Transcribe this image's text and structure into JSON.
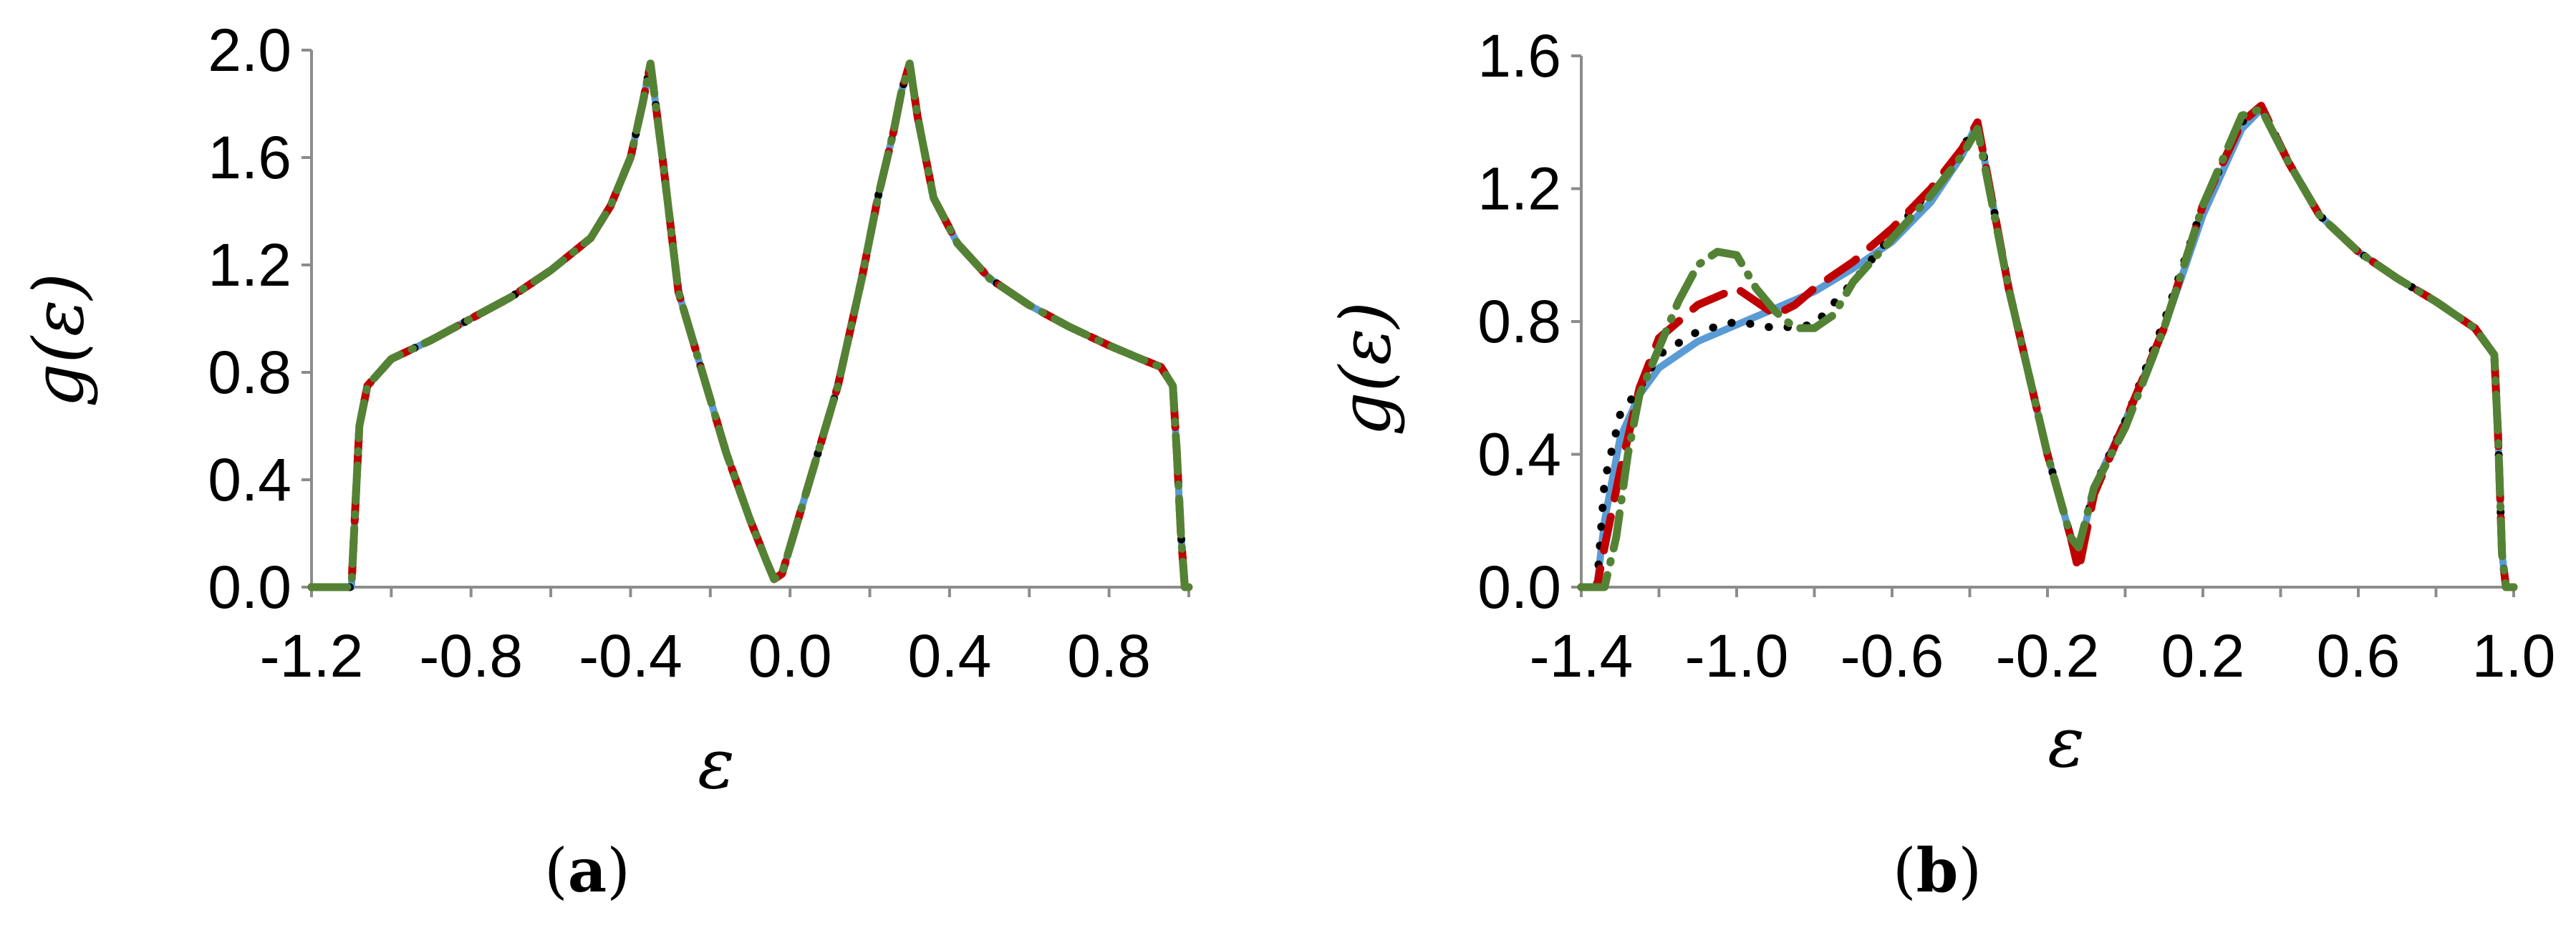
{
  "chart_data": [
    {
      "panel": "(a)",
      "panel_letter": "a",
      "type": "line",
      "xlabel": "ε",
      "ylabel": "g(ε)",
      "xlim": [
        -1.2,
        1.0
      ],
      "ylim": [
        0.0,
        2.0
      ],
      "xticks": [
        "-1.2",
        "-0.8",
        "-0.4",
        "0.0",
        "0.4",
        "0.8"
      ],
      "xtick_values": [
        -1.2,
        -0.8,
        -0.4,
        0.0,
        0.4,
        0.8
      ],
      "yticks": [
        "0.0",
        "0.4",
        "0.8",
        "1.2",
        "1.6",
        "2.0"
      ],
      "ytick_values": [
        0.0,
        0.4,
        0.8,
        1.2,
        1.6,
        2.0
      ],
      "series": [
        {
          "style": "solid",
          "color": "#5b9bd5",
          "x": [
            -1.2,
            -1.12,
            -1.1,
            -1.09,
            -1.08,
            -1.06,
            -1.0,
            -0.9,
            -0.8,
            -0.7,
            -0.6,
            -0.5,
            -0.45,
            -0.4,
            -0.37,
            -0.35,
            -0.32,
            -0.28,
            -0.22,
            -0.16,
            -0.1,
            -0.06,
            -0.04,
            -0.02,
            0.02,
            0.06,
            0.12,
            0.18,
            0.22,
            0.26,
            0.28,
            0.3,
            0.32,
            0.36,
            0.42,
            0.5,
            0.6,
            0.7,
            0.8,
            0.88,
            0.93,
            0.96,
            0.97,
            0.98,
            0.99,
            1.0
          ],
          "y": [
            0.0,
            0.0,
            0.0,
            0.3,
            0.6,
            0.75,
            0.85,
            0.92,
            1.0,
            1.08,
            1.18,
            1.3,
            1.42,
            1.6,
            1.8,
            1.95,
            1.6,
            1.1,
            0.8,
            0.5,
            0.25,
            0.1,
            0.03,
            0.05,
            0.25,
            0.45,
            0.75,
            1.15,
            1.45,
            1.7,
            1.85,
            1.95,
            1.75,
            1.45,
            1.28,
            1.15,
            1.05,
            0.97,
            0.9,
            0.85,
            0.82,
            0.75,
            0.5,
            0.2,
            0.0,
            0.0
          ]
        },
        {
          "style": "dotted",
          "color": "#000000",
          "x": [
            -1.2,
            -1.12,
            -1.1,
            -1.09,
            -1.08,
            -1.06,
            -1.0,
            -0.9,
            -0.8,
            -0.7,
            -0.6,
            -0.5,
            -0.45,
            -0.4,
            -0.37,
            -0.35,
            -0.32,
            -0.28,
            -0.22,
            -0.16,
            -0.1,
            -0.06,
            -0.04,
            -0.02,
            0.02,
            0.06,
            0.12,
            0.18,
            0.22,
            0.26,
            0.28,
            0.3,
            0.32,
            0.36,
            0.42,
            0.5,
            0.6,
            0.7,
            0.8,
            0.88,
            0.93,
            0.96,
            0.97,
            0.98,
            0.99,
            1.0
          ],
          "y": [
            0.0,
            0.0,
            0.0,
            0.3,
            0.6,
            0.75,
            0.85,
            0.92,
            1.0,
            1.08,
            1.18,
            1.3,
            1.42,
            1.6,
            1.8,
            1.95,
            1.6,
            1.1,
            0.8,
            0.5,
            0.25,
            0.1,
            0.03,
            0.05,
            0.25,
            0.45,
            0.75,
            1.15,
            1.45,
            1.7,
            1.85,
            1.95,
            1.75,
            1.45,
            1.28,
            1.15,
            1.05,
            0.97,
            0.9,
            0.85,
            0.82,
            0.75,
            0.5,
            0.2,
            0.0,
            0.0
          ]
        },
        {
          "style": "dashed",
          "color": "#c00000",
          "x": [
            -1.2,
            -1.12,
            -1.1,
            -1.09,
            -1.08,
            -1.06,
            -1.0,
            -0.9,
            -0.8,
            -0.7,
            -0.6,
            -0.5,
            -0.45,
            -0.4,
            -0.37,
            -0.35,
            -0.32,
            -0.28,
            -0.22,
            -0.16,
            -0.1,
            -0.06,
            -0.04,
            -0.02,
            0.02,
            0.06,
            0.12,
            0.18,
            0.22,
            0.26,
            0.28,
            0.3,
            0.32,
            0.36,
            0.42,
            0.5,
            0.6,
            0.7,
            0.8,
            0.88,
            0.93,
            0.96,
            0.97,
            0.98,
            0.99,
            1.0
          ],
          "y": [
            0.0,
            0.0,
            0.0,
            0.3,
            0.6,
            0.75,
            0.85,
            0.92,
            1.0,
            1.08,
            1.18,
            1.3,
            1.42,
            1.6,
            1.8,
            1.95,
            1.6,
            1.1,
            0.8,
            0.5,
            0.25,
            0.1,
            0.03,
            0.05,
            0.25,
            0.45,
            0.75,
            1.15,
            1.45,
            1.7,
            1.85,
            1.95,
            1.75,
            1.45,
            1.28,
            1.15,
            1.05,
            0.97,
            0.9,
            0.85,
            0.82,
            0.75,
            0.5,
            0.2,
            0.0,
            0.0
          ]
        },
        {
          "style": "dash-dot",
          "color": "#548235",
          "x": [
            -1.2,
            -1.12,
            -1.1,
            -1.09,
            -1.08,
            -1.06,
            -1.0,
            -0.9,
            -0.8,
            -0.7,
            -0.6,
            -0.5,
            -0.45,
            -0.4,
            -0.37,
            -0.35,
            -0.32,
            -0.28,
            -0.22,
            -0.16,
            -0.1,
            -0.06,
            -0.04,
            -0.02,
            0.02,
            0.06,
            0.12,
            0.18,
            0.22,
            0.26,
            0.28,
            0.3,
            0.32,
            0.36,
            0.42,
            0.5,
            0.6,
            0.7,
            0.8,
            0.88,
            0.93,
            0.96,
            0.97,
            0.98,
            0.99,
            1.0
          ],
          "y": [
            0.0,
            0.0,
            0.0,
            0.3,
            0.6,
            0.75,
            0.85,
            0.92,
            1.0,
            1.08,
            1.18,
            1.3,
            1.42,
            1.6,
            1.8,
            1.95,
            1.6,
            1.1,
            0.8,
            0.5,
            0.25,
            0.1,
            0.03,
            0.05,
            0.25,
            0.45,
            0.75,
            1.15,
            1.45,
            1.7,
            1.85,
            1.95,
            1.75,
            1.45,
            1.28,
            1.15,
            1.05,
            0.97,
            0.9,
            0.85,
            0.82,
            0.75,
            0.5,
            0.2,
            0.0,
            0.0
          ]
        }
      ]
    },
    {
      "panel": "(b)",
      "panel_letter": "b",
      "type": "line",
      "xlabel": "ε",
      "ylabel": "g(ε)",
      "xlim": [
        -1.4,
        1.0
      ],
      "ylim": [
        0.0,
        1.6
      ],
      "xticks": [
        "-1.4",
        "-1.0",
        "-0.6",
        "-0.2",
        "0.2",
        "0.6",
        "1.0"
      ],
      "xtick_values": [
        -1.4,
        -1.0,
        -0.6,
        -0.2,
        0.2,
        0.6,
        1.0
      ],
      "yticks": [
        "0.0",
        "0.4",
        "0.8",
        "1.2",
        "1.6"
      ],
      "ytick_values": [
        0.0,
        0.4,
        0.8,
        1.2,
        1.6
      ],
      "series": [
        {
          "style": "solid",
          "color": "#5b9bd5",
          "x": [
            -1.4,
            -1.36,
            -1.34,
            -1.3,
            -1.25,
            -1.2,
            -1.1,
            -1.0,
            -0.9,
            -0.8,
            -0.7,
            -0.6,
            -0.5,
            -0.42,
            -0.38,
            -0.3,
            -0.2,
            -0.14,
            -0.12,
            -0.08,
            0.0,
            0.1,
            0.2,
            0.3,
            0.35,
            0.42,
            0.5,
            0.6,
            0.7,
            0.8,
            0.9,
            0.95,
            0.96,
            0.97,
            0.98,
            1.0
          ],
          "y": [
            0.0,
            0.0,
            0.2,
            0.45,
            0.58,
            0.66,
            0.74,
            0.79,
            0.84,
            0.89,
            0.96,
            1.04,
            1.16,
            1.3,
            1.4,
            0.9,
            0.4,
            0.15,
            0.1,
            0.3,
            0.5,
            0.78,
            1.12,
            1.38,
            1.44,
            1.28,
            1.12,
            1.01,
            0.93,
            0.86,
            0.78,
            0.7,
            0.45,
            0.1,
            0.0,
            0.0
          ]
        },
        {
          "style": "dotted",
          "color": "#000000",
          "x": [
            -1.4,
            -1.36,
            -1.34,
            -1.3,
            -1.25,
            -1.2,
            -1.1,
            -1.0,
            -0.9,
            -0.8,
            -0.7,
            -0.6,
            -0.5,
            -0.42,
            -0.38,
            -0.3,
            -0.2,
            -0.14,
            -0.12,
            -0.08,
            0.0,
            0.1,
            0.2,
            0.3,
            0.35,
            0.42,
            0.5,
            0.6,
            0.7,
            0.8,
            0.9,
            0.95,
            0.96,
            0.97,
            0.98,
            1.0
          ],
          "y": [
            0.0,
            0.0,
            0.32,
            0.52,
            0.6,
            0.7,
            0.77,
            0.8,
            0.78,
            0.79,
            0.92,
            1.06,
            1.2,
            1.32,
            1.4,
            0.9,
            0.4,
            0.15,
            0.1,
            0.3,
            0.5,
            0.8,
            1.15,
            1.4,
            1.45,
            1.28,
            1.12,
            1.01,
            0.93,
            0.86,
            0.78,
            0.7,
            0.45,
            0.1,
            0.0,
            0.0
          ]
        },
        {
          "style": "dashed",
          "color": "#c00000",
          "x": [
            -1.4,
            -1.36,
            -1.34,
            -1.3,
            -1.25,
            -1.2,
            -1.1,
            -1.0,
            -0.9,
            -0.85,
            -0.8,
            -0.7,
            -0.6,
            -0.5,
            -0.42,
            -0.38,
            -0.3,
            -0.2,
            -0.14,
            -0.12,
            -0.08,
            0.0,
            0.1,
            0.2,
            0.3,
            0.35,
            0.42,
            0.5,
            0.6,
            0.7,
            0.8,
            0.9,
            0.95,
            0.96,
            0.97,
            0.98,
            1.0
          ],
          "y": [
            0.0,
            0.0,
            0.12,
            0.35,
            0.6,
            0.75,
            0.85,
            0.9,
            0.82,
            0.85,
            0.9,
            0.98,
            1.08,
            1.2,
            1.32,
            1.4,
            0.9,
            0.4,
            0.15,
            0.05,
            0.28,
            0.5,
            0.78,
            1.15,
            1.4,
            1.45,
            1.28,
            1.12,
            1.01,
            0.93,
            0.86,
            0.78,
            0.7,
            0.45,
            0.1,
            0.0,
            0.0
          ]
        },
        {
          "style": "dash-dot",
          "color": "#548235",
          "x": [
            -1.4,
            -1.36,
            -1.34,
            -1.31,
            -1.28,
            -1.25,
            -1.2,
            -1.15,
            -1.1,
            -1.05,
            -1.0,
            -0.95,
            -0.9,
            -0.85,
            -0.8,
            -0.75,
            -0.7,
            -0.6,
            -0.5,
            -0.42,
            -0.38,
            -0.3,
            -0.2,
            -0.14,
            -0.12,
            -0.08,
            0.0,
            0.1,
            0.2,
            0.3,
            0.35,
            0.42,
            0.5,
            0.6,
            0.7,
            0.8,
            0.9,
            0.95,
            0.96,
            0.97,
            0.98,
            1.0
          ],
          "y": [
            0.0,
            0.0,
            0.0,
            0.15,
            0.4,
            0.58,
            0.72,
            0.86,
            0.97,
            1.01,
            1.0,
            0.9,
            0.83,
            0.78,
            0.78,
            0.82,
            0.92,
            1.05,
            1.18,
            1.3,
            1.38,
            0.9,
            0.4,
            0.15,
            0.12,
            0.3,
            0.48,
            0.78,
            1.15,
            1.42,
            1.44,
            1.28,
            1.12,
            1.01,
            0.93,
            0.86,
            0.78,
            0.7,
            0.45,
            0.1,
            0.0,
            0.0
          ]
        }
      ]
    }
  ]
}
